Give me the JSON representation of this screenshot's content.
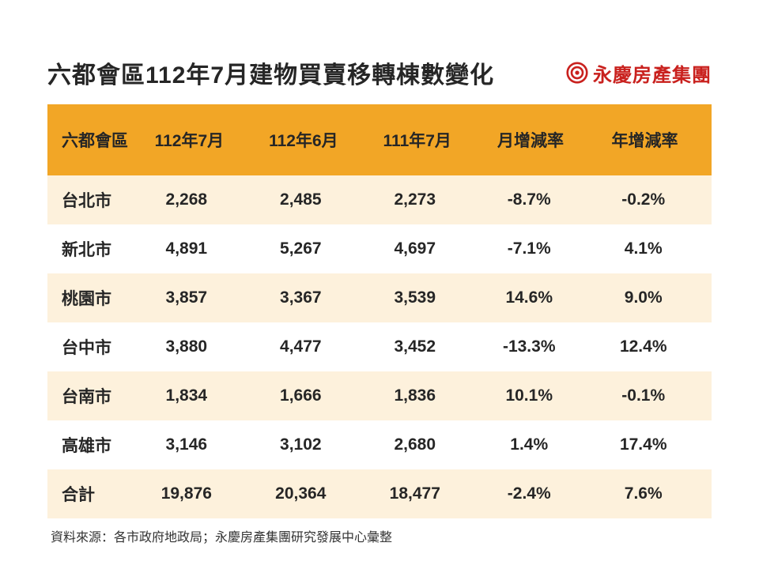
{
  "title": "六都會區112年7月建物買賣移轉棟數變化",
  "brand": {
    "name": "永慶房產集團",
    "logo_color": "#c9211e"
  },
  "table": {
    "header_bg": "#f2a626",
    "row_odd_bg": "#fdf1dc",
    "row_even_bg": "#ffffff",
    "text_color": "#262626",
    "columns": [
      "六都會區",
      "112年7月",
      "112年6月",
      "111年7月",
      "月增減率",
      "年增減率"
    ],
    "rows": [
      {
        "city": "台北市",
        "v1": "2,268",
        "v2": "2,485",
        "v3": "2,273",
        "mom": "-8.7%",
        "yoy": "-0.2%"
      },
      {
        "city": "新北市",
        "v1": "4,891",
        "v2": "5,267",
        "v3": "4,697",
        "mom": "-7.1%",
        "yoy": "4.1%"
      },
      {
        "city": "桃園市",
        "v1": "3,857",
        "v2": "3,367",
        "v3": "3,539",
        "mom": "14.6%",
        "yoy": "9.0%"
      },
      {
        "city": "台中市",
        "v1": "3,880",
        "v2": "4,477",
        "v3": "3,452",
        "mom": "-13.3%",
        "yoy": "12.4%"
      },
      {
        "city": "台南市",
        "v1": "1,834",
        "v2": "1,666",
        "v3": "1,836",
        "mom": "10.1%",
        "yoy": "-0.1%"
      },
      {
        "city": "高雄市",
        "v1": "3,146",
        "v2": "3,102",
        "v3": "2,680",
        "mom": "1.4%",
        "yoy": "17.4%"
      },
      {
        "city": "合計",
        "v1": "19,876",
        "v2": "20,364",
        "v3": "18,477",
        "mom": "-2.4%",
        "yoy": "7.6%"
      }
    ]
  },
  "source": "資料來源：各市政府地政局；永慶房產集團研究發展中心彙整"
}
